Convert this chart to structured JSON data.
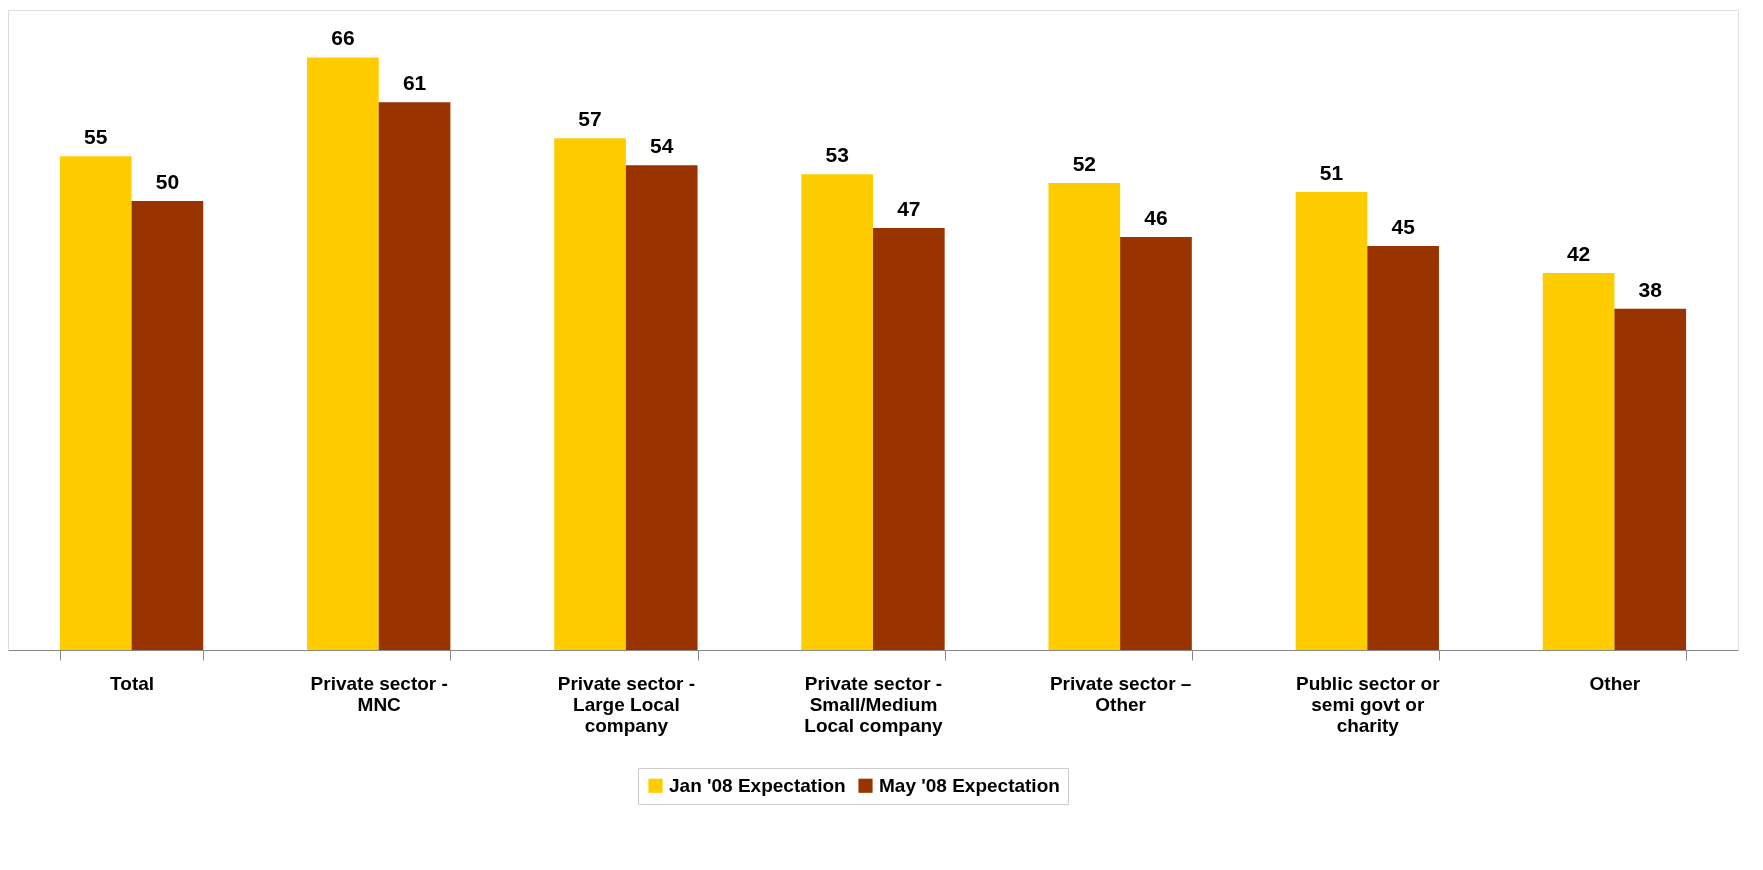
{
  "chart_data": {
    "type": "bar",
    "categories": [
      "Total",
      "Private sector -\nMNC",
      "Private sector -\nLarge Local\ncompany",
      "Private sector -\nSmall/Medium\nLocal company",
      "Private sector –\nOther",
      "Public sector or\nsemi govt or\ncharity",
      "Other"
    ],
    "series": [
      {
        "name": "Jan '08 Expectation",
        "color": "#ffcc00",
        "values": [
          55,
          66,
          57,
          53,
          52,
          51,
          42
        ]
      },
      {
        "name": "May '08 Expectation",
        "color": "#993300",
        "values": [
          50,
          61,
          54,
          47,
          46,
          45,
          38
        ]
      }
    ],
    "data_labels": true,
    "legend": "bottom",
    "grid": false
  }
}
